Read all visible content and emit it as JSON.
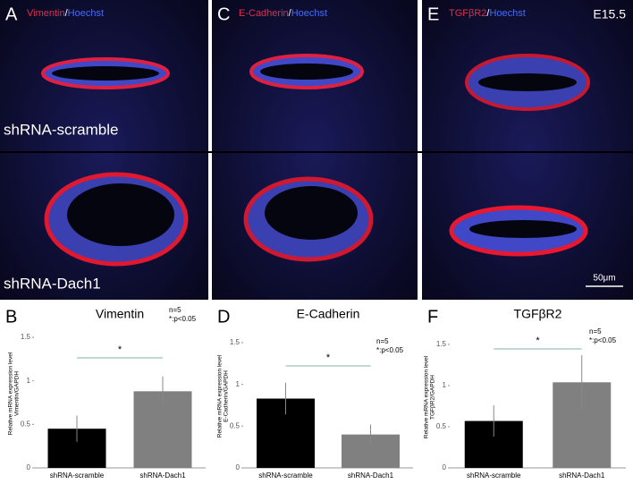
{
  "images": {
    "panels": [
      {
        "letter": "A",
        "stain": [
          "Vimentin",
          "/",
          "Hoechst"
        ]
      },
      {
        "letter": "C",
        "stain": [
          "E-Cadherin",
          "/",
          "Hoechst"
        ]
      },
      {
        "letter": "E",
        "stain": [
          "TGFβR2",
          "/",
          "Hoechst"
        ],
        "stage": "E15.5",
        "scale_bar": "50μm"
      }
    ],
    "row_labels": [
      "shRNA-scramble",
      "shRNA-Dach1"
    ]
  },
  "chart_data": [
    {
      "type": "bar",
      "letter": "B",
      "title": "Vimentin",
      "ylabel": [
        "Relative mRNA expression level",
        "Vimentin/GAPDH"
      ],
      "categories": [
        "shRNA-scramble",
        "shRNA-Dach1"
      ],
      "values": [
        0.45,
        0.88
      ],
      "errors": [
        0.15,
        0.17
      ],
      "colors": [
        "#000000",
        "#808080"
      ],
      "ylim": [
        0,
        1.5
      ],
      "yticks": [
        0,
        0.5,
        1,
        1.5
      ],
      "n": "n=5",
      "p": "*:p<0.05",
      "significance": "*"
    },
    {
      "type": "bar",
      "letter": "D",
      "title": "E-Cadherin",
      "ylabel": [
        "Relative mRNA expression level",
        "E-Cadherin/GAPDH"
      ],
      "categories": [
        "shRNA-scramble",
        "shRNA-Dach1"
      ],
      "values": [
        0.83,
        0.4
      ],
      "errors": [
        0.19,
        0.12
      ],
      "colors": [
        "#000000",
        "#808080"
      ],
      "ylim": [
        0,
        1.5
      ],
      "yticks": [
        0,
        0.5,
        1,
        1.5
      ],
      "n": "n=5",
      "p": "*:p<0.05",
      "significance": "*"
    },
    {
      "type": "bar",
      "letter": "F",
      "title": "TGFβR2",
      "ylabel": [
        "Relative mRNA expression level",
        "TGFβR2/GAPDH"
      ],
      "categories": [
        "shRNA-scramble",
        "shRNA-Dach1"
      ],
      "values": [
        0.57,
        1.04
      ],
      "errors": [
        0.19,
        0.33
      ],
      "colors": [
        "#000000",
        "#808080"
      ],
      "ylim": [
        0,
        1.5
      ],
      "yticks": [
        0,
        0.5,
        1,
        1.5
      ],
      "n": "n=5",
      "p": "*:p<0.05",
      "significance": "*"
    }
  ]
}
